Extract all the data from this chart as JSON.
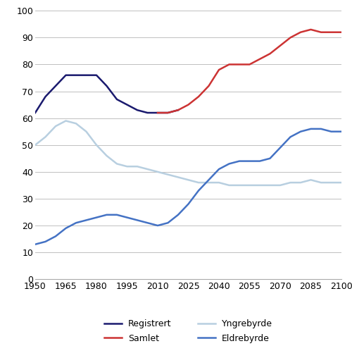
{
  "xlim": [
    1950,
    2100
  ],
  "ylim": [
    0,
    100
  ],
  "yticks": [
    0,
    10,
    20,
    30,
    40,
    50,
    60,
    70,
    80,
    90,
    100
  ],
  "xticks": [
    1950,
    1965,
    1980,
    1995,
    2010,
    2025,
    2040,
    2055,
    2070,
    2085,
    2100
  ],
  "registrert": {
    "x": [
      1950,
      1955,
      1960,
      1965,
      1970,
      1975,
      1980,
      1985,
      1990,
      1995,
      2000,
      2005,
      2010,
      2015,
      2020
    ],
    "y": [
      62,
      68,
      72,
      76,
      76,
      76,
      76,
      72,
      67,
      65,
      63,
      62,
      62,
      62,
      63
    ],
    "color": "#1a1a6e",
    "label": "Registrert",
    "linewidth": 1.8
  },
  "samlet": {
    "x": [
      2010,
      2015,
      2020,
      2025,
      2030,
      2035,
      2040,
      2045,
      2050,
      2055,
      2060,
      2065,
      2070,
      2075,
      2080,
      2085,
      2090,
      2095,
      2100
    ],
    "y": [
      62,
      62,
      63,
      65,
      68,
      72,
      78,
      80,
      80,
      80,
      82,
      84,
      87,
      90,
      92,
      93,
      92,
      92,
      92
    ],
    "color": "#cc3333",
    "label": "Samlet",
    "linewidth": 1.8
  },
  "yngrebyrde": {
    "x": [
      1950,
      1955,
      1960,
      1965,
      1970,
      1975,
      1980,
      1985,
      1990,
      1995,
      2000,
      2005,
      2010,
      2015,
      2020,
      2025,
      2030,
      2035,
      2040,
      2045,
      2050,
      2055,
      2060,
      2065,
      2070,
      2075,
      2080,
      2085,
      2090,
      2095,
      2100
    ],
    "y": [
      50,
      53,
      57,
      59,
      58,
      55,
      50,
      46,
      43,
      42,
      42,
      41,
      40,
      39,
      38,
      37,
      36,
      36,
      36,
      35,
      35,
      35,
      35,
      35,
      35,
      36,
      36,
      37,
      36,
      36,
      36
    ],
    "color": "#b8cfe0",
    "label": "Yngrebyrde",
    "linewidth": 1.8
  },
  "eldrebyrde": {
    "x": [
      1950,
      1955,
      1960,
      1965,
      1970,
      1975,
      1980,
      1985,
      1990,
      1995,
      2000,
      2005,
      2010,
      2015,
      2020,
      2025,
      2030,
      2035,
      2040,
      2045,
      2050,
      2055,
      2060,
      2065,
      2070,
      2075,
      2080,
      2085,
      2090,
      2095,
      2100
    ],
    "y": [
      13,
      14,
      16,
      19,
      21,
      22,
      23,
      24,
      24,
      23,
      22,
      21,
      20,
      21,
      24,
      28,
      33,
      37,
      41,
      43,
      44,
      44,
      44,
      45,
      49,
      53,
      55,
      56,
      56,
      55,
      55
    ],
    "color": "#4472c4",
    "label": "Eldrebyrde",
    "linewidth": 1.8
  },
  "background_color": "#ffffff",
  "grid_color": "#c0c0c0"
}
